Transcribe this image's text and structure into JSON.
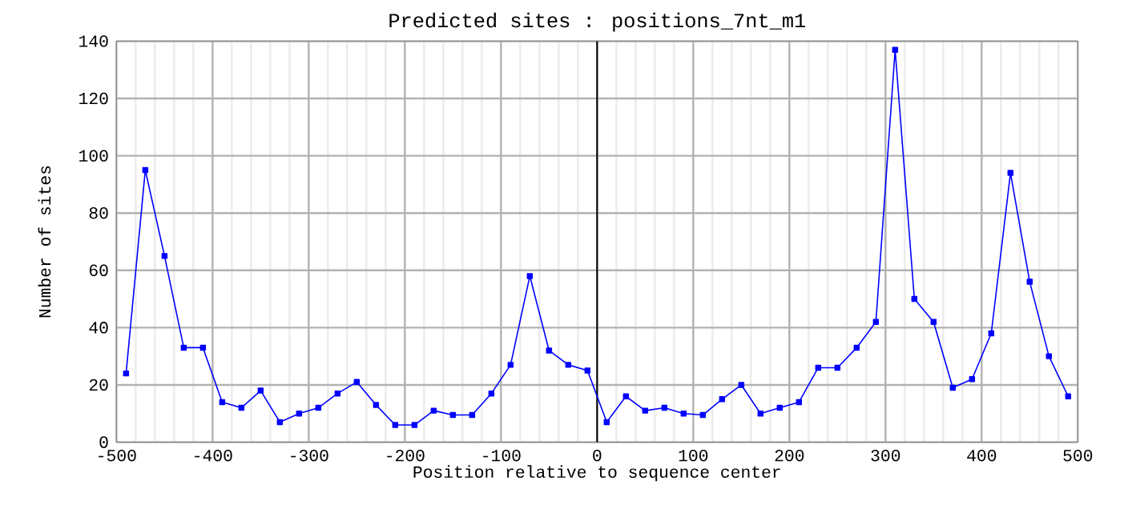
{
  "chart_data": {
    "type": "line",
    "title": "Predicted sites : positions_7nt_m1",
    "xlabel": "Position relative to sequence center",
    "ylabel": "Number of sites",
    "x": [
      -490,
      -470,
      -450,
      -430,
      -410,
      -390,
      -370,
      -350,
      -330,
      -310,
      -290,
      -270,
      -250,
      -230,
      -210,
      -190,
      -170,
      -150,
      -130,
      -110,
      -90,
      -70,
      -50,
      -30,
      -10,
      10,
      30,
      50,
      70,
      90,
      110,
      130,
      150,
      170,
      190,
      210,
      230,
      250,
      270,
      290,
      310,
      330,
      350,
      370,
      390,
      410,
      430,
      450,
      470,
      490
    ],
    "series": [
      {
        "color": "#0000ff",
        "values": [
          24,
          95,
          65,
          33,
          33,
          14,
          12,
          18,
          7,
          10,
          12,
          17,
          21,
          13,
          6,
          6,
          11,
          9.5,
          9.5,
          17,
          27,
          58,
          32,
          27,
          25,
          7,
          16,
          11,
          12,
          10,
          9.5,
          15,
          20,
          10,
          12,
          14,
          26,
          26,
          33,
          42,
          137,
          50,
          42,
          19,
          22,
          38,
          94,
          56,
          30,
          16
        ]
      }
    ],
    "xlim": [
      -500,
      500
    ],
    "ylim": [
      0,
      140
    ],
    "xticks": [
      -500,
      -400,
      -300,
      -200,
      -100,
      0,
      100,
      200,
      300,
      400,
      500
    ],
    "yticks": [
      0,
      20,
      40,
      60,
      80,
      100,
      120,
      140
    ],
    "ref_lines": [
      {
        "axis": "x",
        "value": 0,
        "color": "#000000"
      }
    ],
    "grid": true,
    "marker": "square",
    "line_style": "solid"
  }
}
